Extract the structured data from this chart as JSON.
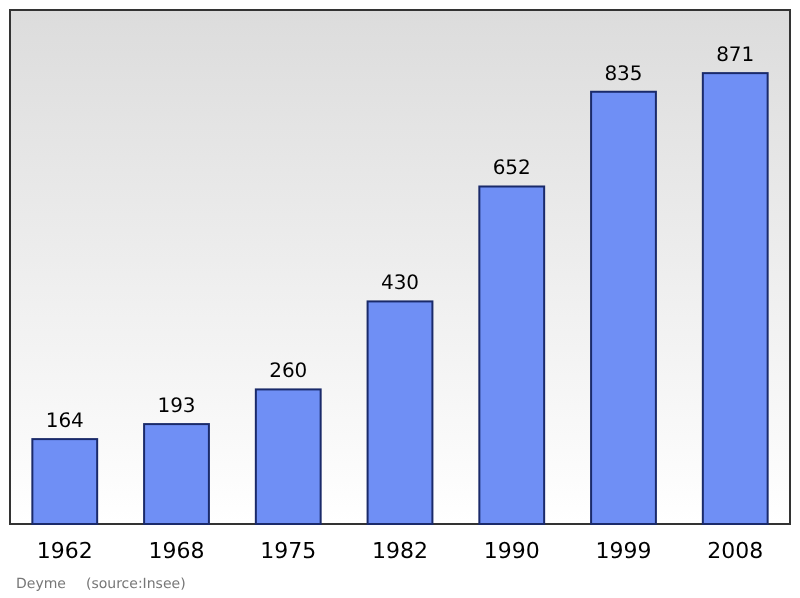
{
  "chart_data": {
    "type": "bar",
    "categories": [
      "1962",
      "1968",
      "1975",
      "1982",
      "1990",
      "1999",
      "2008"
    ],
    "values": [
      164,
      193,
      260,
      430,
      652,
      835,
      871
    ],
    "color": "#6f8ff5",
    "data_labels": true,
    "grid": false,
    "annotations": [
      "Deyme",
      "(source:Insee)"
    ]
  }
}
